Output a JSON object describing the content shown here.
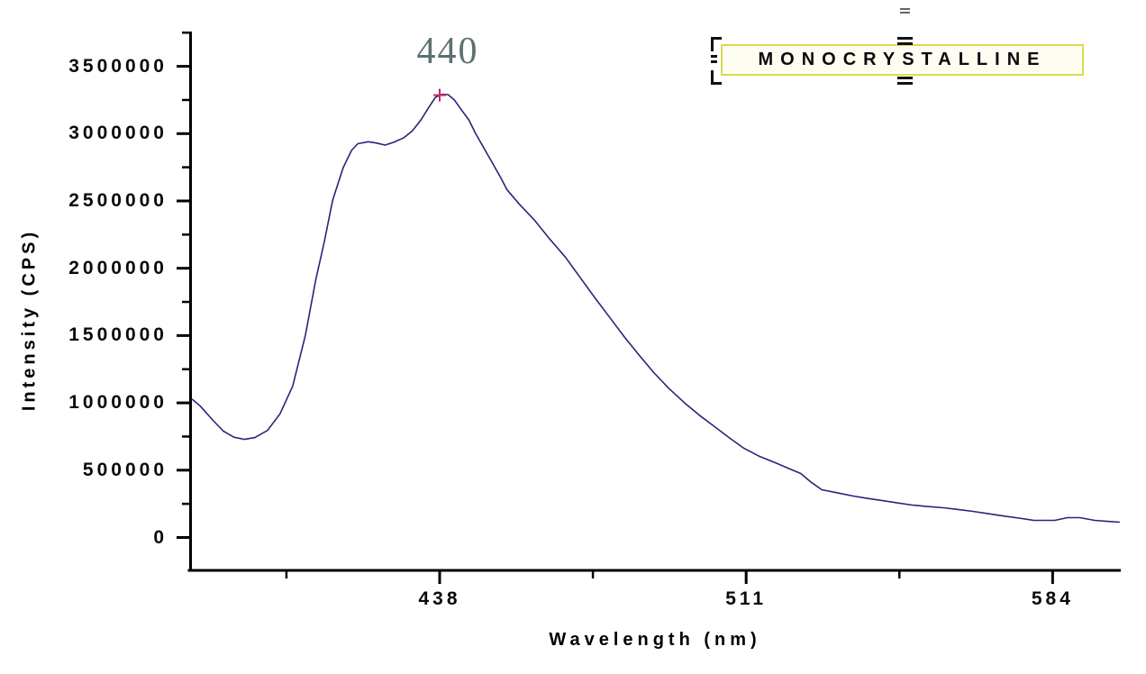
{
  "axes": {
    "x_title": "Wavelength (nm)",
    "y_title": "Intensity (CPS)",
    "axis_color": "#000000"
  },
  "annotations": {
    "peak_label": "440",
    "peak_label_color": "#5e7070"
  },
  "legend": {
    "label": "MONOCRYSTALLINE",
    "border_color": "#d9d952",
    "selected": true
  },
  "chart_data": {
    "type": "line",
    "title": "",
    "xlabel": "Wavelength (nm)",
    "ylabel": "Intensity (CPS)",
    "xlim": [
      378,
      600
    ],
    "ylim": [
      0,
      3750000
    ],
    "grid": false,
    "x_ticks": [
      438,
      511,
      584
    ],
    "x_tick_labels": [
      "438",
      "511",
      "584"
    ],
    "y_ticks": [
      0,
      500000,
      1000000,
      1500000,
      2000000,
      2500000,
      3000000,
      3500000
    ],
    "y_tick_labels": [
      "0",
      "500000",
      "1000000",
      "1500000",
      "2000000",
      "2500000",
      "3000000",
      "3500000"
    ],
    "peak": {
      "wavelength": 438,
      "intensity": 3286000,
      "label": "440",
      "marker": "plus",
      "marker_color": "#c5295e"
    },
    "series": [
      {
        "name": "MONOCRYSTALLINE",
        "color": "#26267a",
        "points": [
          [
            379,
            1028000
          ],
          [
            381,
            975000
          ],
          [
            384,
            870000
          ],
          [
            386.5,
            790000
          ],
          [
            389,
            745000
          ],
          [
            391.5,
            729000
          ],
          [
            394,
            742000
          ],
          [
            397,
            795000
          ],
          [
            400,
            920000
          ],
          [
            403,
            1125000
          ],
          [
            406,
            1500000
          ],
          [
            408.5,
            1915000
          ],
          [
            410.5,
            2195000
          ],
          [
            412.5,
            2505000
          ],
          [
            415,
            2745000
          ],
          [
            417,
            2875000
          ],
          [
            418.5,
            2925000
          ],
          [
            421,
            2940000
          ],
          [
            423,
            2930000
          ],
          [
            425,
            2915000
          ],
          [
            427,
            2935000
          ],
          [
            429.5,
            2970000
          ],
          [
            431.5,
            3020000
          ],
          [
            433.5,
            3100000
          ],
          [
            435.5,
            3200000
          ],
          [
            437,
            3270000
          ],
          [
            438.5,
            3292000
          ],
          [
            440,
            3290000
          ],
          [
            441.5,
            3250000
          ],
          [
            443,
            3185000
          ],
          [
            445,
            3100000
          ],
          [
            446.5,
            3005000
          ],
          [
            448.5,
            2895000
          ],
          [
            450.5,
            2785000
          ],
          [
            452.5,
            2675000
          ],
          [
            454,
            2585000
          ],
          [
            457,
            2475000
          ],
          [
            460.5,
            2360000
          ],
          [
            464,
            2225000
          ],
          [
            468,
            2080000
          ],
          [
            471.5,
            1930000
          ],
          [
            475,
            1780000
          ],
          [
            478.5,
            1635000
          ],
          [
            482,
            1490000
          ],
          [
            485.5,
            1355000
          ],
          [
            489,
            1225000
          ],
          [
            492.5,
            1110000
          ],
          [
            496.5,
            995000
          ],
          [
            500,
            905000
          ],
          [
            503.5,
            823000
          ],
          [
            507,
            740000
          ],
          [
            510.5,
            662000
          ],
          [
            514,
            605000
          ],
          [
            518,
            555000
          ],
          [
            521,
            515000
          ],
          [
            524,
            475000
          ],
          [
            526.5,
            410000
          ],
          [
            529,
            355000
          ],
          [
            533,
            330000
          ],
          [
            536.5,
            308000
          ],
          [
            540,
            290000
          ],
          [
            543.5,
            274000
          ],
          [
            547,
            257000
          ],
          [
            550.5,
            241000
          ],
          [
            554,
            230000
          ],
          [
            558,
            221000
          ],
          [
            561.5,
            208000
          ],
          [
            565,
            194000
          ],
          [
            568.5,
            178000
          ],
          [
            572,
            161000
          ],
          [
            576,
            144000
          ],
          [
            579.5,
            127000
          ],
          [
            584.5,
            127000
          ],
          [
            587.5,
            147000
          ],
          [
            590.5,
            147000
          ],
          [
            594,
            127000
          ],
          [
            597,
            120000
          ],
          [
            600,
            114000
          ]
        ]
      }
    ]
  }
}
